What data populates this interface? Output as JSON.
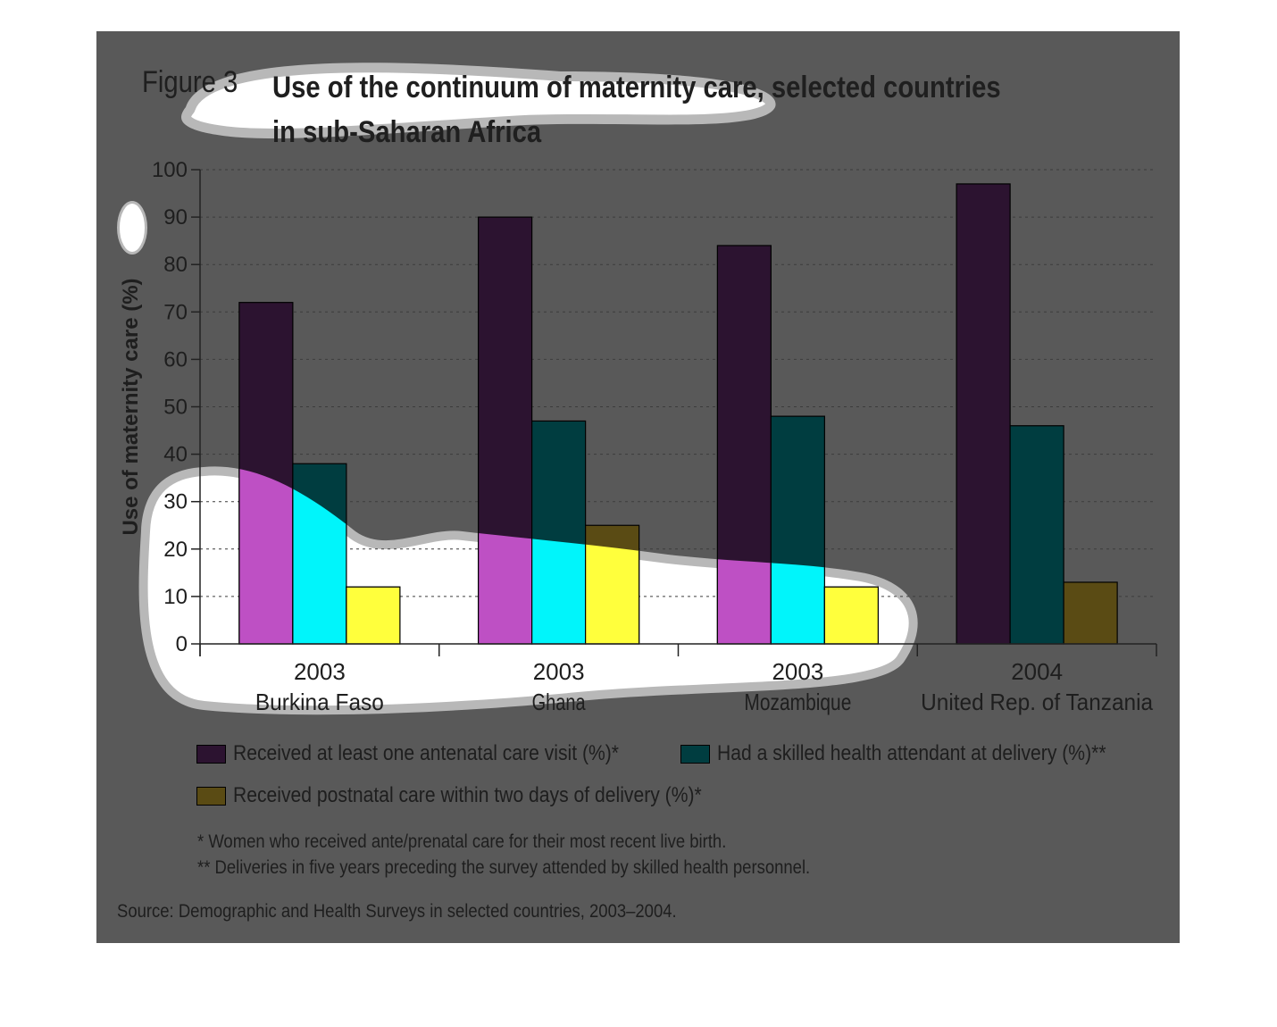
{
  "figure": {
    "label": "Figure 3",
    "title_line1": "Use of the continuum of maternity care, selected countries",
    "title_line2": "in sub-Saharan Africa"
  },
  "colors": {
    "panel_shade": "#595959",
    "antenatal": "#be50c4",
    "antenatal_shaded": "#2c1330",
    "skilled": "#00f5fb",
    "skilled_shaded": "#003d40",
    "postnatal": "#ffff3c",
    "postnatal_shaded": "#5a4b14"
  },
  "chart_data": {
    "type": "bar",
    "title": "Use of the continuum of maternity care, selected countries in sub-Saharan Africa",
    "ylabel": "Use of maternity care (%)",
    "ylim": [
      0,
      100
    ],
    "yticks": [
      "0",
      "10",
      "20",
      "30",
      "40",
      "50",
      "60",
      "70",
      "80",
      "90",
      "100"
    ],
    "grid": true,
    "legend_position": "bottom",
    "categories": [
      {
        "year": "2003",
        "country": "Burkina Faso"
      },
      {
        "year": "2003",
        "country": "Ghana"
      },
      {
        "year": "2003",
        "country": "Mozambique"
      },
      {
        "year": "2004",
        "country": "United Rep. of Tanzania"
      }
    ],
    "series": [
      {
        "name": "Received at least one antenatal care visit (%)*",
        "values": [
          72,
          90,
          84,
          97
        ]
      },
      {
        "name": "Had a skilled health attendant at delivery (%)**",
        "values": [
          38,
          47,
          48,
          46
        ]
      },
      {
        "name": "Received postnatal care within two days of delivery (%)*",
        "values": [
          12,
          25,
          12,
          13
        ]
      }
    ]
  },
  "notes": {
    "note1": "* Women who received ante/prenatal care for their most recent live birth.",
    "note2": "** Deliveries in five years preceding the survey attended by skilled health personnel.",
    "source": "Source: Demographic and Health Surveys in selected countries, 2003–2004."
  }
}
